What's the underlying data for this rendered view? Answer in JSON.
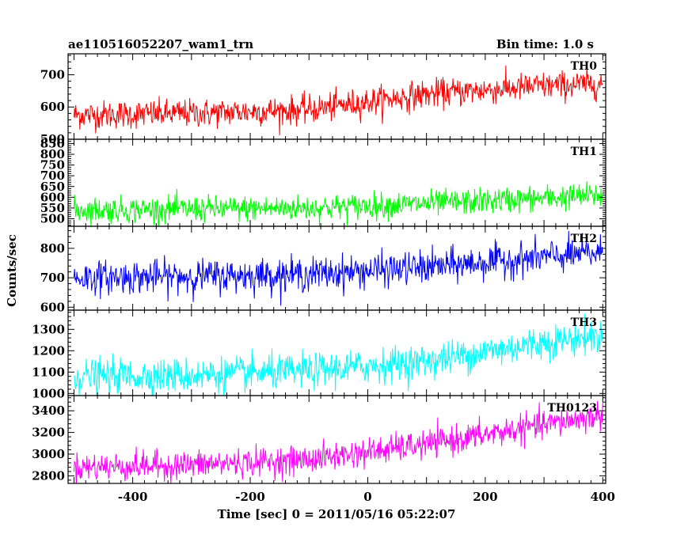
{
  "chart_data": {
    "type": "line",
    "title": "ae110516052207_wam1_trn",
    "bin_time_label": "Bin time: 1.0 s",
    "xlabel": "Time [sec] 0 = 2011/05/16 05:22:07",
    "ylabel": "Counts/sec",
    "xlim": [
      -510,
      405
    ],
    "x_ticks": [
      -400,
      -200,
      0,
      200,
      400
    ],
    "x_start": -500,
    "x_end": 400,
    "x_step": 1,
    "series": [
      {
        "name": "TH0",
        "color": "#ff0000",
        "ylim": [
          500,
          765
        ],
        "y_ticks": [
          500,
          600,
          700
        ],
        "trend": [
          [
            -500,
            575
          ],
          [
            -300,
            580
          ],
          [
            -100,
            592
          ],
          [
            100,
            640
          ],
          [
            300,
            665
          ],
          [
            400,
            672
          ]
        ],
        "noise_sd": 22
      },
      {
        "name": "TH1",
        "color": "#00ff00",
        "ylim": [
          465,
          870
        ],
        "y_ticks": [
          500,
          550,
          600,
          650,
          700,
          750,
          800,
          850
        ],
        "trend": [
          [
            -500,
            540
          ],
          [
            -300,
            545
          ],
          [
            -100,
            550
          ],
          [
            100,
            570
          ],
          [
            300,
            595
          ],
          [
            400,
            610
          ]
        ],
        "noise_sd": 30
      },
      {
        "name": "TH2",
        "color": "#0000ff",
        "ylim": [
          590,
          875
        ],
        "y_ticks": [
          600,
          700,
          800
        ],
        "trend": [
          [
            -500,
            700
          ],
          [
            -300,
            705
          ],
          [
            -100,
            712
          ],
          [
            100,
            735
          ],
          [
            300,
            770
          ],
          [
            400,
            785
          ]
        ],
        "noise_sd": 28
      },
      {
        "name": "TH3",
        "color": "#00ffff",
        "ylim": [
          990,
          1390
        ],
        "y_ticks": [
          1000,
          1100,
          1200,
          1300
        ],
        "trend": [
          [
            -500,
            1080
          ],
          [
            -300,
            1085
          ],
          [
            -100,
            1105
          ],
          [
            100,
            1150
          ],
          [
            300,
            1240
          ],
          [
            400,
            1270
          ]
        ],
        "noise_sd": 40
      },
      {
        "name": "TH0123",
        "color": "#ff00ff",
        "ylim": [
          2730,
          3540
        ],
        "y_ticks": [
          2800,
          3000,
          3200,
          3400
        ],
        "trend": [
          [
            -500,
            2880
          ],
          [
            -300,
            2900
          ],
          [
            -100,
            2950
          ],
          [
            100,
            3090
          ],
          [
            300,
            3270
          ],
          [
            400,
            3360
          ]
        ],
        "noise_sd": 65
      }
    ]
  }
}
